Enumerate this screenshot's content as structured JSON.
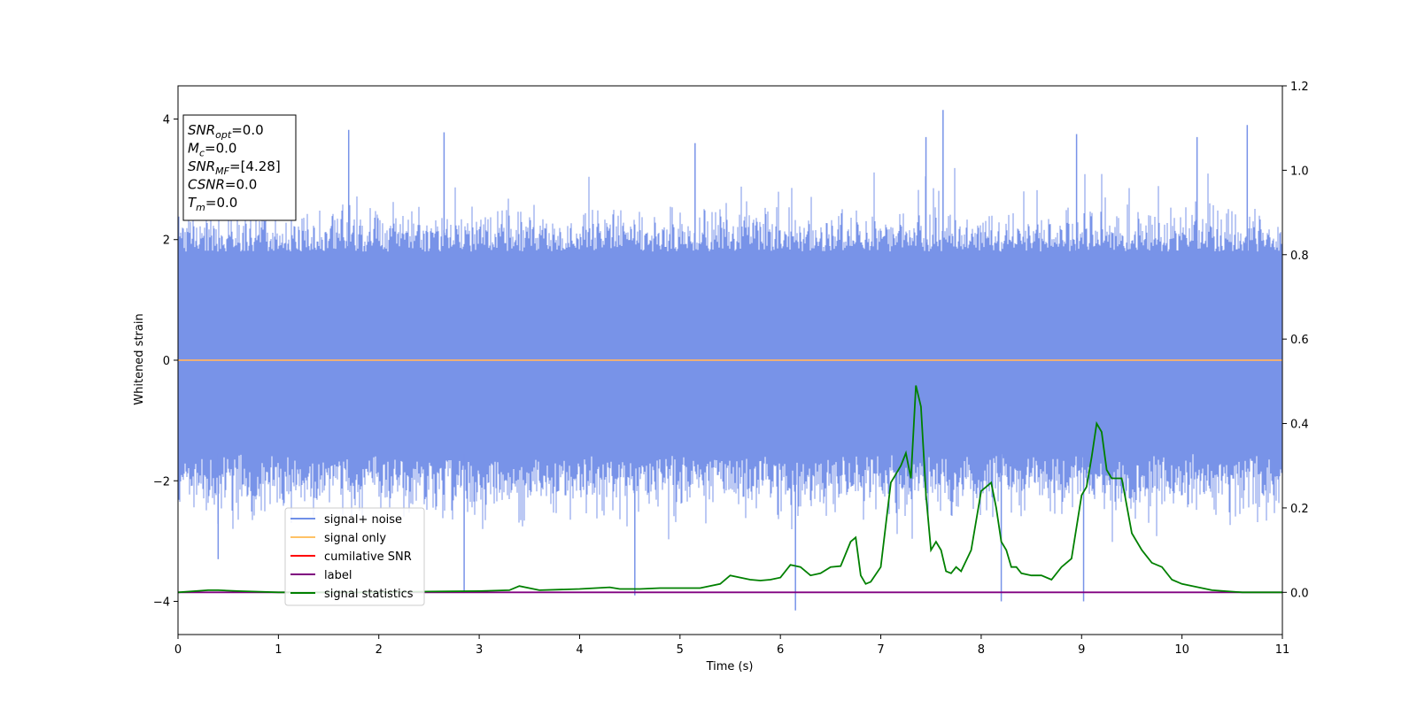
{
  "chart_data": {
    "type": "line",
    "xlabel": "Time (s)",
    "ylabel": "Whitened strain",
    "xlim": [
      0,
      11
    ],
    "ylim": [
      -4.55,
      4.55
    ],
    "y2lim": [
      -0.1,
      1.2
    ],
    "xticks": [
      "0",
      "1",
      "2",
      "3",
      "4",
      "5",
      "6",
      "7",
      "8",
      "9",
      "10",
      "11"
    ],
    "yticks": [
      "4",
      "2",
      "0",
      "−2",
      "−4"
    ],
    "y2ticks": [
      "1.2",
      "1.0",
      "0.8",
      "0.6",
      "0.4",
      "0.2",
      "0.0"
    ],
    "annotation": {
      "lines": [
        {
          "base": "SNR",
          "sub": "opt",
          "value": "=0.0"
        },
        {
          "base": "M",
          "sub": "c",
          "value": "=0.0"
        },
        {
          "base": "SNR",
          "sub": "MF",
          "value": "=[4.28]"
        },
        {
          "base": "CSNR",
          "sub": "",
          "value": "=0.0"
        },
        {
          "base": "T",
          "sub": "m",
          "value": "=0.0"
        }
      ]
    },
    "legend": {
      "placement": "lower-left",
      "entries": [
        {
          "label": "signal+ noise",
          "color": "#6f8fe8"
        },
        {
          "label": "signal only",
          "color": "#ffc266"
        },
        {
          "label": "cumilative SNR",
          "color": "#ff0000"
        },
        {
          "label": "label",
          "color": "#800080"
        },
        {
          "label": "signal statistics",
          "color": "#008000"
        }
      ]
    },
    "series": [
      {
        "name": "signal+ noise",
        "axis": "left",
        "color": "#7893e8",
        "style": "noise",
        "envelope_upper": 2.6,
        "envelope_lower": -2.3,
        "band_upper": 1.8,
        "band_lower": -1.55,
        "spikes": [
          {
            "x": 1.7,
            "y": 3.82
          },
          {
            "x": 2.65,
            "y": 3.78
          },
          {
            "x": 7.62,
            "y": 4.15
          },
          {
            "x": 10.65,
            "y": 3.9
          },
          {
            "x": 10.15,
            "y": 3.7
          },
          {
            "x": 8.95,
            "y": 3.75
          },
          {
            "x": 4.55,
            "y": -3.9
          },
          {
            "x": 6.15,
            "y": -4.15
          },
          {
            "x": 8.2,
            "y": -4.0
          },
          {
            "x": 9.02,
            "y": -4.0
          },
          {
            "x": 2.85,
            "y": -3.85
          },
          {
            "x": 0.4,
            "y": -3.3
          },
          {
            "x": 7.45,
            "y": 3.7
          },
          {
            "x": 5.15,
            "y": 3.6
          }
        ]
      },
      {
        "name": "signal only",
        "axis": "left",
        "color": "#ffb366",
        "x": [
          0,
          11
        ],
        "y": [
          0,
          0
        ]
      },
      {
        "name": "label",
        "axis": "right",
        "color": "#800080",
        "x": [
          0,
          11
        ],
        "y": [
          0,
          0
        ]
      },
      {
        "name": "signal statistics",
        "axis": "right",
        "color": "#008000",
        "x": [
          0,
          0.3,
          0.4,
          0.6,
          1.0,
          2.0,
          2.5,
          3.0,
          3.3,
          3.4,
          3.6,
          4.0,
          4.3,
          4.4,
          4.6,
          4.8,
          5.0,
          5.2,
          5.4,
          5.5,
          5.6,
          5.7,
          5.8,
          5.9,
          6.0,
          6.1,
          6.2,
          6.3,
          6.4,
          6.5,
          6.6,
          6.7,
          6.75,
          6.8,
          6.85,
          6.9,
          7.0,
          7.1,
          7.15,
          7.2,
          7.25,
          7.3,
          7.35,
          7.4,
          7.45,
          7.5,
          7.55,
          7.6,
          7.65,
          7.7,
          7.75,
          7.8,
          7.9,
          8.0,
          8.1,
          8.15,
          8.2,
          8.25,
          8.3,
          8.35,
          8.4,
          8.5,
          8.6,
          8.7,
          8.8,
          8.9,
          9.0,
          9.05,
          9.1,
          9.15,
          9.2,
          9.25,
          9.3,
          9.35,
          9.4,
          9.5,
          9.6,
          9.7,
          9.8,
          9.9,
          10.0,
          10.3,
          10.6,
          11.0
        ],
        "y": [
          0,
          0.005,
          0.005,
          0.003,
          0,
          0.0,
          0.002,
          0.003,
          0.005,
          0.015,
          0.005,
          0.008,
          0.012,
          0.008,
          0.008,
          0.01,
          0.01,
          0.01,
          0.02,
          0.04,
          0.035,
          0.03,
          0.028,
          0.03,
          0.035,
          0.065,
          0.06,
          0.04,
          0.045,
          0.06,
          0.062,
          0.12,
          0.13,
          0.04,
          0.02,
          0.025,
          0.06,
          0.26,
          0.28,
          0.3,
          0.33,
          0.27,
          0.49,
          0.44,
          0.23,
          0.1,
          0.12,
          0.1,
          0.05,
          0.045,
          0.06,
          0.05,
          0.1,
          0.24,
          0.26,
          0.2,
          0.12,
          0.1,
          0.06,
          0.06,
          0.045,
          0.04,
          0.04,
          0.03,
          0.06,
          0.08,
          0.23,
          0.25,
          0.32,
          0.4,
          0.38,
          0.29,
          0.27,
          0.27,
          0.27,
          0.14,
          0.1,
          0.07,
          0.06,
          0.03,
          0.02,
          0.005,
          0.0,
          0.0
        ]
      }
    ]
  }
}
